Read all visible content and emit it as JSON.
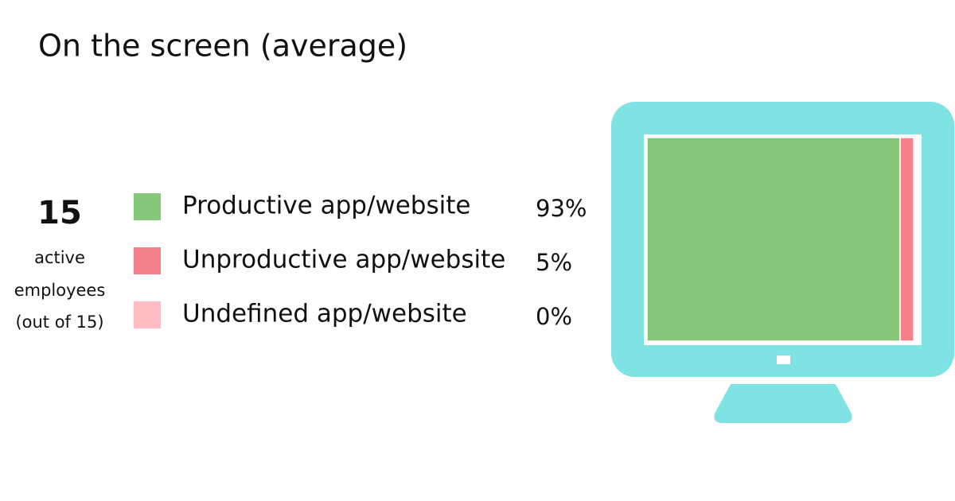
{
  "chart_data": {
    "type": "stacked-bar",
    "title": "On the screen (average)",
    "stat": "15",
    "stat_label": [
      "active",
      "employees",
      "(out of 15)"
    ],
    "categories": [
      "Productive app/website",
      "Unproductive app/website",
      "Undefined app/website"
    ],
    "values": [
      93,
      5,
      0
    ],
    "value_labels": [
      "93%",
      "5%",
      "0%"
    ],
    "colors": [
      "#87c77a",
      "#f4818b",
      "#ffbcc3"
    ],
    "xlim": [
      0,
      100
    ]
  }
}
